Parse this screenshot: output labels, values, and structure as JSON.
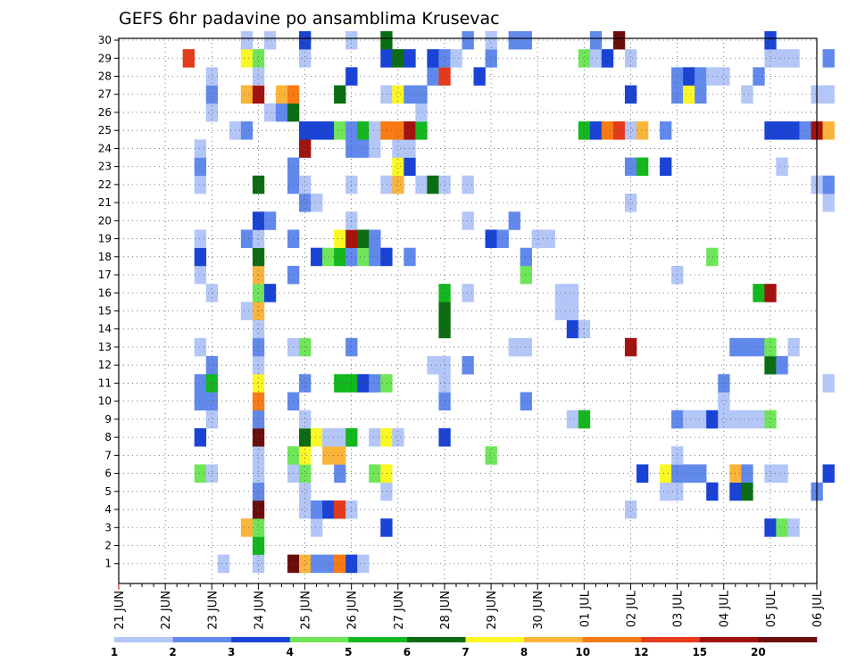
{
  "chart_data": {
    "type": "heatmap",
    "title": "GEFS 6hr padavine po ansamblima Krusevac",
    "xlabel": "",
    "ylabel": "",
    "x_start_label": "21 JUN",
    "x_ticks": [
      "21 JUN",
      "22 JUN",
      "23 JUN",
      "24 JUN",
      "25 JUN",
      "26 JUN",
      "27 JUN",
      "28 JUN",
      "29 JUN",
      "30 JUN",
      "01 JUL",
      "02 JUL",
      "03 JUL",
      "04 JUL",
      "05 JUL",
      "06 JUL"
    ],
    "time_step_hours": 6,
    "y_ticks": [
      "1",
      "2",
      "3",
      "4",
      "5",
      "6",
      "7",
      "8",
      "9",
      "10",
      "11",
      "12",
      "13",
      "14",
      "15",
      "16",
      "17",
      "18",
      "19",
      "20",
      "21",
      "22",
      "23",
      "24",
      "25",
      "26",
      "27",
      "28",
      "29",
      "30"
    ],
    "ylim": [
      0,
      30
    ],
    "grid": true,
    "colorbar": {
      "labels": [
        "1",
        "2",
        "3",
        "4",
        "5",
        "6",
        "7",
        "8",
        "10",
        "12",
        "15",
        "20"
      ],
      "colors": [
        "#b3c6f7",
        "#6189ec",
        "#1a43d6",
        "#6fe65a",
        "#12b81d",
        "#0b6d12",
        "#fbf725",
        "#fbb43a",
        "#f97b14",
        "#e53a1b",
        "#a3120d",
        "#6b0d0b"
      ]
    },
    "cells": [
      [
        1,
        9,
        1
      ],
      [
        1,
        12,
        1
      ],
      [
        1,
        15,
        12
      ],
      [
        1,
        16,
        8
      ],
      [
        1,
        17,
        2
      ],
      [
        1,
        18,
        2
      ],
      [
        1,
        19,
        9
      ],
      [
        1,
        20,
        3
      ],
      [
        1,
        21,
        1
      ],
      [
        2,
        12,
        5
      ],
      [
        3,
        11,
        8
      ],
      [
        3,
        12,
        4
      ],
      [
        3,
        17,
        1
      ],
      [
        3,
        23,
        3
      ],
      [
        3,
        56,
        3
      ],
      [
        3,
        57,
        4
      ],
      [
        3,
        58,
        1
      ],
      [
        4,
        12,
        12
      ],
      [
        4,
        16,
        1
      ],
      [
        4,
        17,
        2
      ],
      [
        4,
        18,
        3
      ],
      [
        4,
        19,
        10
      ],
      [
        4,
        20,
        1
      ],
      [
        4,
        44,
        1
      ],
      [
        5,
        12,
        2
      ],
      [
        5,
        16,
        1
      ],
      [
        5,
        23,
        1
      ],
      [
        5,
        47,
        1
      ],
      [
        5,
        48,
        1
      ],
      [
        5,
        51,
        3
      ],
      [
        5,
        53,
        3
      ],
      [
        5,
        54,
        6
      ],
      [
        5,
        60,
        2
      ],
      [
        6,
        7,
        4
      ],
      [
        6,
        8,
        1
      ],
      [
        6,
        12,
        1
      ],
      [
        6,
        15,
        1
      ],
      [
        6,
        16,
        4
      ],
      [
        6,
        19,
        2
      ],
      [
        6,
        22,
        4
      ],
      [
        6,
        23,
        7
      ],
      [
        6,
        45,
        3
      ],
      [
        6,
        47,
        7
      ],
      [
        6,
        48,
        2
      ],
      [
        6,
        49,
        2
      ],
      [
        6,
        50,
        2
      ],
      [
        6,
        53,
        8
      ],
      [
        6,
        54,
        2
      ],
      [
        6,
        56,
        1
      ],
      [
        6,
        57,
        1
      ],
      [
        6,
        61,
        3
      ],
      [
        7,
        12,
        1
      ],
      [
        7,
        15,
        4
      ],
      [
        7,
        16,
        7
      ],
      [
        7,
        18,
        8
      ],
      [
        7,
        19,
        8
      ],
      [
        7,
        32,
        4
      ],
      [
        7,
        48,
        1
      ],
      [
        8,
        7,
        3
      ],
      [
        8,
        12,
        12
      ],
      [
        8,
        16,
        6
      ],
      [
        8,
        17,
        7
      ],
      [
        8,
        18,
        1
      ],
      [
        8,
        19,
        1
      ],
      [
        8,
        20,
        5
      ],
      [
        8,
        22,
        1
      ],
      [
        8,
        23,
        7
      ],
      [
        8,
        24,
        1
      ],
      [
        8,
        28,
        3
      ],
      [
        9,
        8,
        1
      ],
      [
        9,
        12,
        2
      ],
      [
        9,
        16,
        1
      ],
      [
        9,
        39,
        1
      ],
      [
        9,
        40,
        5
      ],
      [
        9,
        48,
        2
      ],
      [
        9,
        49,
        1
      ],
      [
        9,
        50,
        1
      ],
      [
        9,
        51,
        3
      ],
      [
        9,
        52,
        1
      ],
      [
        9,
        53,
        1
      ],
      [
        9,
        54,
        1
      ],
      [
        9,
        55,
        1
      ],
      [
        9,
        56,
        4
      ],
      [
        10,
        7,
        2
      ],
      [
        10,
        8,
        2
      ],
      [
        10,
        12,
        9
      ],
      [
        10,
        15,
        2
      ],
      [
        10,
        28,
        2
      ],
      [
        10,
        35,
        2
      ],
      [
        10,
        52,
        1
      ],
      [
        11,
        7,
        2
      ],
      [
        11,
        8,
        5
      ],
      [
        11,
        12,
        7
      ],
      [
        11,
        16,
        2
      ],
      [
        11,
        19,
        5
      ],
      [
        11,
        20,
        5
      ],
      [
        11,
        21,
        3
      ],
      [
        11,
        22,
        2
      ],
      [
        11,
        23,
        4
      ],
      [
        11,
        28,
        1
      ],
      [
        11,
        52,
        2
      ],
      [
        11,
        61,
        1
      ],
      [
        12,
        8,
        2
      ],
      [
        12,
        12,
        1
      ],
      [
        12,
        27,
        1
      ],
      [
        12,
        28,
        1
      ],
      [
        12,
        30,
        2
      ],
      [
        12,
        56,
        6
      ],
      [
        12,
        57,
        2
      ],
      [
        13,
        7,
        1
      ],
      [
        13,
        12,
        2
      ],
      [
        13,
        15,
        1
      ],
      [
        13,
        16,
        4
      ],
      [
        13,
        20,
        2
      ],
      [
        13,
        34,
        1
      ],
      [
        13,
        35,
        1
      ],
      [
        13,
        44,
        11
      ],
      [
        13,
        53,
        2
      ],
      [
        13,
        54,
        2
      ],
      [
        13,
        55,
        2
      ],
      [
        13,
        56,
        4
      ],
      [
        13,
        58,
        1
      ],
      [
        14,
        12,
        1
      ],
      [
        14,
        28,
        6
      ],
      [
        14,
        39,
        3
      ],
      [
        14,
        40,
        1
      ],
      [
        15,
        11,
        1
      ],
      [
        15,
        12,
        8
      ],
      [
        15,
        28,
        6
      ],
      [
        15,
        38,
        1
      ],
      [
        15,
        39,
        1
      ],
      [
        16,
        8,
        1
      ],
      [
        16,
        12,
        4
      ],
      [
        16,
        13,
        3
      ],
      [
        16,
        28,
        5
      ],
      [
        16,
        30,
        1
      ],
      [
        16,
        38,
        1
      ],
      [
        16,
        39,
        1
      ],
      [
        16,
        55,
        5
      ],
      [
        16,
        56,
        11
      ],
      [
        17,
        7,
        1
      ],
      [
        17,
        12,
        8
      ],
      [
        17,
        15,
        2
      ],
      [
        17,
        35,
        4
      ],
      [
        17,
        48,
        1
      ],
      [
        18,
        7,
        3
      ],
      [
        18,
        12,
        6
      ],
      [
        18,
        17,
        3
      ],
      [
        18,
        18,
        4
      ],
      [
        18,
        19,
        5
      ],
      [
        18,
        20,
        2
      ],
      [
        18,
        21,
        4
      ],
      [
        18,
        22,
        2
      ],
      [
        18,
        23,
        3
      ],
      [
        18,
        25,
        2
      ],
      [
        18,
        35,
        2
      ],
      [
        18,
        51,
        4
      ],
      [
        19,
        7,
        1
      ],
      [
        19,
        11,
        2
      ],
      [
        19,
        12,
        1
      ],
      [
        19,
        15,
        2
      ],
      [
        19,
        19,
        7
      ],
      [
        19,
        20,
        11
      ],
      [
        19,
        21,
        6
      ],
      [
        19,
        22,
        2
      ],
      [
        19,
        32,
        3
      ],
      [
        19,
        33,
        2
      ],
      [
        19,
        36,
        1
      ],
      [
        19,
        37,
        1
      ],
      [
        20,
        12,
        3
      ],
      [
        20,
        13,
        2
      ],
      [
        20,
        20,
        1
      ],
      [
        20,
        30,
        1
      ],
      [
        20,
        34,
        2
      ],
      [
        21,
        16,
        2
      ],
      [
        21,
        17,
        1
      ],
      [
        21,
        44,
        1
      ],
      [
        21,
        61,
        1
      ],
      [
        22,
        7,
        1
      ],
      [
        22,
        12,
        6
      ],
      [
        22,
        15,
        2
      ],
      [
        22,
        16,
        1
      ],
      [
        22,
        20,
        1
      ],
      [
        22,
        23,
        1
      ],
      [
        22,
        24,
        8
      ],
      [
        22,
        26,
        1
      ],
      [
        22,
        27,
        6
      ],
      [
        22,
        28,
        1
      ],
      [
        22,
        30,
        1
      ],
      [
        22,
        60,
        1
      ],
      [
        22,
        61,
        2
      ],
      [
        23,
        7,
        2
      ],
      [
        23,
        15,
        2
      ],
      [
        23,
        24,
        7
      ],
      [
        23,
        25,
        3
      ],
      [
        23,
        44,
        2
      ],
      [
        23,
        45,
        5
      ],
      [
        23,
        47,
        3
      ],
      [
        23,
        57,
        1
      ],
      [
        24,
        7,
        1
      ],
      [
        24,
        16,
        11
      ],
      [
        24,
        20,
        2
      ],
      [
        24,
        21,
        2
      ],
      [
        24,
        22,
        1
      ],
      [
        24,
        24,
        1
      ],
      [
        24,
        25,
        1
      ],
      [
        25,
        10,
        1
      ],
      [
        25,
        11,
        2
      ],
      [
        25,
        16,
        3
      ],
      [
        25,
        17,
        3
      ],
      [
        25,
        18,
        3
      ],
      [
        25,
        19,
        4
      ],
      [
        25,
        20,
        2
      ],
      [
        25,
        21,
        5
      ],
      [
        25,
        22,
        1
      ],
      [
        25,
        23,
        9
      ],
      [
        25,
        24,
        9
      ],
      [
        25,
        25,
        11
      ],
      [
        25,
        26,
        5
      ],
      [
        25,
        40,
        5
      ],
      [
        25,
        41,
        3
      ],
      [
        25,
        42,
        9
      ],
      [
        25,
        43,
        10
      ],
      [
        25,
        44,
        1
      ],
      [
        25,
        45,
        8
      ],
      [
        25,
        47,
        2
      ],
      [
        25,
        56,
        3
      ],
      [
        25,
        57,
        3
      ],
      [
        25,
        58,
        3
      ],
      [
        25,
        59,
        2
      ],
      [
        25,
        60,
        11
      ],
      [
        25,
        61,
        8
      ],
      [
        26,
        8,
        1
      ],
      [
        26,
        13,
        1
      ],
      [
        26,
        14,
        2
      ],
      [
        26,
        15,
        6
      ],
      [
        26,
        26,
        1
      ],
      [
        27,
        8,
        2
      ],
      [
        27,
        11,
        8
      ],
      [
        27,
        12,
        11
      ],
      [
        27,
        14,
        8
      ],
      [
        27,
        15,
        9
      ],
      [
        27,
        19,
        6
      ],
      [
        27,
        23,
        1
      ],
      [
        27,
        24,
        7
      ],
      [
        27,
        25,
        2
      ],
      [
        27,
        26,
        2
      ],
      [
        27,
        44,
        3
      ],
      [
        27,
        48,
        2
      ],
      [
        27,
        49,
        7
      ],
      [
        27,
        50,
        2
      ],
      [
        27,
        54,
        1
      ],
      [
        27,
        60,
        1
      ],
      [
        27,
        61,
        1
      ],
      [
        28,
        8,
        1
      ],
      [
        28,
        12,
        1
      ],
      [
        28,
        20,
        3
      ],
      [
        28,
        27,
        2
      ],
      [
        28,
        28,
        10
      ],
      [
        28,
        31,
        3
      ],
      [
        28,
        48,
        2
      ],
      [
        28,
        49,
        3
      ],
      [
        28,
        50,
        2
      ],
      [
        28,
        51,
        1
      ],
      [
        28,
        52,
        1
      ],
      [
        28,
        55,
        2
      ],
      [
        29,
        6,
        10
      ],
      [
        29,
        11,
        7
      ],
      [
        29,
        12,
        4
      ],
      [
        29,
        16,
        1
      ],
      [
        29,
        23,
        3
      ],
      [
        29,
        24,
        6
      ],
      [
        29,
        25,
        3
      ],
      [
        29,
        27,
        3
      ],
      [
        29,
        28,
        2
      ],
      [
        29,
        29,
        1
      ],
      [
        29,
        32,
        2
      ],
      [
        29,
        40,
        4
      ],
      [
        29,
        41,
        1
      ],
      [
        29,
        42,
        3
      ],
      [
        29,
        44,
        1
      ],
      [
        29,
        56,
        1
      ],
      [
        29,
        57,
        1
      ],
      [
        29,
        58,
        1
      ],
      [
        29,
        61,
        2
      ],
      [
        30,
        11,
        1
      ],
      [
        30,
        13,
        1
      ],
      [
        30,
        16,
        3
      ],
      [
        30,
        20,
        1
      ],
      [
        30,
        23,
        6
      ],
      [
        30,
        30,
        2
      ],
      [
        30,
        32,
        1
      ],
      [
        30,
        34,
        2
      ],
      [
        30,
        35,
        2
      ],
      [
        30,
        41,
        2
      ],
      [
        30,
        43,
        12
      ],
      [
        30,
        56,
        3
      ]
    ]
  }
}
